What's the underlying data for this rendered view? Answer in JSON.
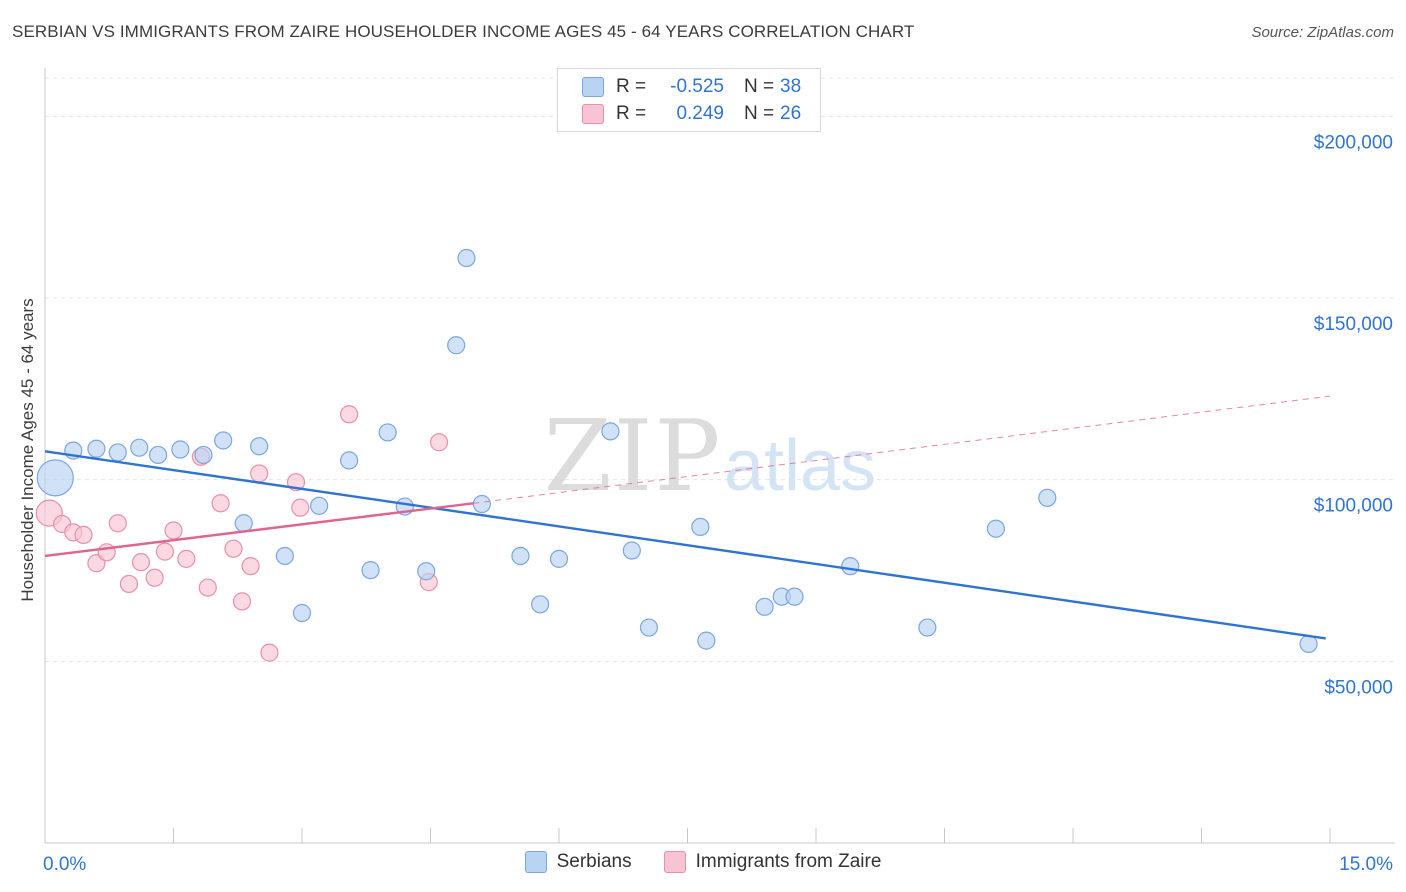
{
  "title": "SERBIAN VS IMMIGRANTS FROM ZAIRE HOUSEHOLDER INCOME AGES 45 - 64 YEARS CORRELATION CHART",
  "source": "Source: ZipAtlas.com",
  "watermark": {
    "zip": "ZIP",
    "atlas": "atlas"
  },
  "legend": {
    "serbians": {
      "r_label": "R =",
      "r_value": "-0.525",
      "n_label": "N =",
      "n_value": "38"
    },
    "zaire": {
      "r_label": "R =",
      "r_value": "0.249",
      "n_label": "N =",
      "n_value": "26"
    }
  },
  "bottom_legend": {
    "serbians": "Serbians",
    "zaire": "Immigrants from Zaire"
  },
  "colors": {
    "serbians_fill": "#b9d3f3",
    "serbians_stroke": "#7aa6e0",
    "serbians_line": "#2f74d0",
    "zaire_fill": "#f8c4d3",
    "zaire_stroke": "#e98fab",
    "zaire_line": "#e0658e",
    "grid": "#e3e3e3",
    "axis_text": "#2f74d0"
  },
  "chart_data": {
    "type": "scatter",
    "title": "SERBIAN VS IMMIGRANTS FROM ZAIRE HOUSEHOLDER INCOME AGES 45 - 64 YEARS CORRELATION CHART",
    "xlabel": "",
    "ylabel": "Householder Income Ages 45 - 64 years",
    "xlim": [
      0,
      15
    ],
    "ylim": [
      0,
      210000
    ],
    "x_tick_labels": [
      "0.0%",
      "15.0%"
    ],
    "y_ticks": [
      50000,
      100000,
      150000,
      200000
    ],
    "y_tick_labels": [
      "$50,000",
      "$100,000",
      "$150,000",
      "$200,000"
    ],
    "series": [
      {
        "name": "Serbians",
        "points": [
          {
            "x": 0.12,
            "y": 100500,
            "size": "large"
          },
          {
            "x": 0.33,
            "y": 108000
          },
          {
            "x": 0.6,
            "y": 108500
          },
          {
            "x": 0.85,
            "y": 107500
          },
          {
            "x": 1.1,
            "y": 108800
          },
          {
            "x": 1.32,
            "y": 106800
          },
          {
            "x": 1.58,
            "y": 108300
          },
          {
            "x": 1.85,
            "y": 106800
          },
          {
            "x": 2.08,
            "y": 110800
          },
          {
            "x": 2.32,
            "y": 88000
          },
          {
            "x": 2.5,
            "y": 109200
          },
          {
            "x": 2.8,
            "y": 79000
          },
          {
            "x": 3.0,
            "y": 63300
          },
          {
            "x": 3.2,
            "y": 92800
          },
          {
            "x": 3.55,
            "y": 105300
          },
          {
            "x": 3.8,
            "y": 75100
          },
          {
            "x": 4.0,
            "y": 113000
          },
          {
            "x": 4.2,
            "y": 92600
          },
          {
            "x": 4.45,
            "y": 74800
          },
          {
            "x": 4.8,
            "y": 137000
          },
          {
            "x": 4.92,
            "y": 161000
          },
          {
            "x": 5.1,
            "y": 93300
          },
          {
            "x": 5.55,
            "y": 79000
          },
          {
            "x": 5.78,
            "y": 65700
          },
          {
            "x": 6.0,
            "y": 78200
          },
          {
            "x": 6.6,
            "y": 113300
          },
          {
            "x": 6.85,
            "y": 80500
          },
          {
            "x": 7.05,
            "y": 59300
          },
          {
            "x": 7.65,
            "y": 87000
          },
          {
            "x": 7.72,
            "y": 55700
          },
          {
            "x": 8.4,
            "y": 65000
          },
          {
            "x": 8.6,
            "y": 67800
          },
          {
            "x": 8.75,
            "y": 67800
          },
          {
            "x": 9.4,
            "y": 76200
          },
          {
            "x": 10.3,
            "y": 59300
          },
          {
            "x": 11.1,
            "y": 86500
          },
          {
            "x": 11.7,
            "y": 95000
          },
          {
            "x": 14.75,
            "y": 54800
          }
        ]
      },
      {
        "name": "Immigrants from Zaire",
        "points": [
          {
            "x": 0.05,
            "y": 90800,
            "size": "medium"
          },
          {
            "x": 0.2,
            "y": 87800
          },
          {
            "x": 0.33,
            "y": 85500
          },
          {
            "x": 0.45,
            "y": 84800
          },
          {
            "x": 0.6,
            "y": 77000
          },
          {
            "x": 0.72,
            "y": 80000
          },
          {
            "x": 0.85,
            "y": 88000
          },
          {
            "x": 0.98,
            "y": 71300
          },
          {
            "x": 1.12,
            "y": 77300
          },
          {
            "x": 1.28,
            "y": 73000
          },
          {
            "x": 1.4,
            "y": 80200
          },
          {
            "x": 1.5,
            "y": 86000
          },
          {
            "x": 1.65,
            "y": 78200
          },
          {
            "x": 1.82,
            "y": 106300
          },
          {
            "x": 1.9,
            "y": 70300
          },
          {
            "x": 2.05,
            "y": 93500
          },
          {
            "x": 2.2,
            "y": 81000
          },
          {
            "x": 2.3,
            "y": 66500
          },
          {
            "x": 2.4,
            "y": 76200
          },
          {
            "x": 2.5,
            "y": 101700
          },
          {
            "x": 2.62,
            "y": 52400
          },
          {
            "x": 2.93,
            "y": 99300
          },
          {
            "x": 2.98,
            "y": 92300
          },
          {
            "x": 3.55,
            "y": 118000
          },
          {
            "x": 4.48,
            "y": 71800
          },
          {
            "x": 4.6,
            "y": 110300
          }
        ]
      }
    ],
    "trend_lines": [
      {
        "series": "Serbians",
        "x": [
          0.0,
          14.95
        ],
        "y": [
          107800,
          56300
        ],
        "style": "solid"
      },
      {
        "series": "Immigrants from Zaire",
        "x": [
          0.0,
          5.0
        ],
        "y": [
          79000,
          93500
        ],
        "style": "solid"
      },
      {
        "series": "Immigrants from Zaire",
        "x": [
          5.0,
          15.0
        ],
        "y": [
          93500,
          123000
        ],
        "style": "dashed"
      }
    ]
  }
}
